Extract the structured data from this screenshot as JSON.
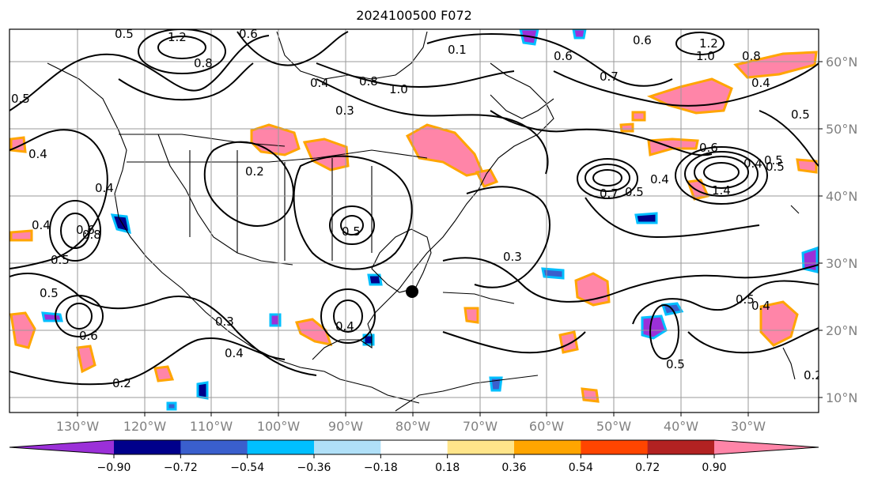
{
  "title": "2024100500 F072",
  "x_ticks": [
    "130°W",
    "120°W",
    "110°W",
    "100°W",
    "90°W",
    "80°W",
    "70°W",
    "60°W",
    "50°W",
    "40°W",
    "30°W"
  ],
  "y_ticks": [
    "60°N",
    "50°N",
    "40°N",
    "30°N",
    "20°N",
    "10°N"
  ],
  "colorbar": {
    "colors": [
      "#9b30d8",
      "#00008b",
      "#3a5fcd",
      "#00bfff",
      "#b0e0f8",
      "#ffffff",
      "#ffe58a",
      "#ffa500",
      "#ff4500",
      "#b22222",
      "#ff85a8"
    ],
    "labels": [
      "−0.90",
      "−0.72",
      "−0.54",
      "−0.36",
      "−0.18",
      "0.18",
      "0.36",
      "0.54",
      "0.72",
      "0.90"
    ]
  },
  "contour_labels": [
    "1.2",
    "0.8",
    "0.5",
    "0.5",
    "0.6",
    "1.2",
    "1.0",
    "0.8",
    "0.6",
    "0.7",
    "0.1",
    "0.4",
    "0.3",
    "0.8",
    "1.0",
    "0.6",
    "0.5",
    "0.4",
    "0.4",
    "0.2",
    "0.4",
    "0.4",
    "0.5",
    "0.6",
    "0.3",
    "0.5",
    "0.2",
    "0.6",
    "0.4",
    "0.5",
    "0.3",
    "0.4",
    "0.6",
    "0.4",
    "0.5",
    "0.7",
    "0.5",
    "0.4",
    "1.4",
    "0.5",
    "0.5",
    "0.4",
    "0.5",
    "0.2",
    "0.8"
  ]
}
